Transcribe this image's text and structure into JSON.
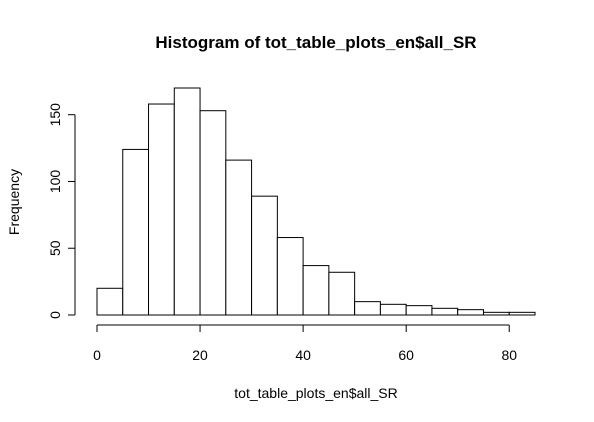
{
  "chart_data": {
    "type": "bar",
    "title": "Histogram of tot_table_plots_en$all_SR",
    "xlabel": "tot_table_plots_en$all_SR",
    "ylabel": "Frequency",
    "bin_edges": [
      0,
      5,
      10,
      15,
      20,
      25,
      30,
      35,
      40,
      45,
      50,
      55,
      60,
      65,
      70,
      75,
      80,
      85
    ],
    "values": [
      20,
      124,
      158,
      170,
      153,
      116,
      89,
      58,
      37,
      32,
      10,
      8,
      7,
      5,
      4,
      2,
      2
    ],
    "xlim": [
      0,
      85
    ],
    "ylim": [
      0,
      170
    ],
    "x_ticks": [
      0,
      20,
      40,
      60,
      80
    ],
    "y_ticks": [
      0,
      50,
      100,
      150
    ],
    "grid": false,
    "legend": "none"
  }
}
